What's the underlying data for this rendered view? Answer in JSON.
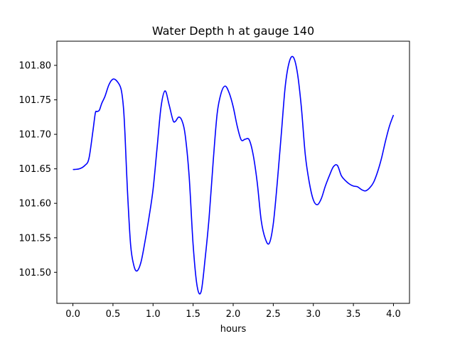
{
  "chart_data": {
    "type": "line",
    "title": "Water Depth h at gauge 140",
    "xlabel": "hours",
    "ylabel": "",
    "xlim": [
      -0.2,
      4.2
    ],
    "ylim": [
      101.455,
      101.835
    ],
    "x_ticks": [
      0.0,
      0.5,
      1.0,
      1.5,
      2.0,
      2.5,
      3.0,
      3.5,
      4.0
    ],
    "x_tick_labels": [
      "0.0",
      "0.5",
      "1.0",
      "1.5",
      "2.0",
      "2.5",
      "3.0",
      "3.5",
      "4.0"
    ],
    "y_ticks": [
      101.5,
      101.55,
      101.6,
      101.65,
      101.7,
      101.75,
      101.8
    ],
    "y_tick_labels": [
      "101.50",
      "101.55",
      "101.60",
      "101.65",
      "101.70",
      "101.75",
      "101.80"
    ],
    "grid": false,
    "series": [
      {
        "color": "#0000ff",
        "x": [
          0.0,
          0.08,
          0.15,
          0.2,
          0.25,
          0.28,
          0.3,
          0.33,
          0.36,
          0.4,
          0.45,
          0.5,
          0.55,
          0.6,
          0.63,
          0.65,
          0.68,
          0.72,
          0.76,
          0.8,
          0.85,
          0.9,
          0.95,
          1.0,
          1.05,
          1.1,
          1.15,
          1.2,
          1.25,
          1.28,
          1.32,
          1.36,
          1.4,
          1.45,
          1.5,
          1.55,
          1.6,
          1.65,
          1.7,
          1.75,
          1.8,
          1.85,
          1.9,
          1.95,
          2.0,
          2.05,
          2.1,
          2.15,
          2.2,
          2.25,
          2.3,
          2.35,
          2.4,
          2.45,
          2.5,
          2.55,
          2.6,
          2.65,
          2.7,
          2.75,
          2.8,
          2.85,
          2.9,
          2.95,
          3.0,
          3.05,
          3.1,
          3.15,
          3.2,
          3.25,
          3.3,
          3.35,
          3.4,
          3.45,
          3.5,
          3.55,
          3.6,
          3.65,
          3.7,
          3.75,
          3.8,
          3.85,
          3.9,
          3.95,
          4.0
        ],
        "y": [
          101.649,
          101.65,
          101.655,
          101.665,
          101.705,
          101.731,
          101.733,
          101.735,
          101.745,
          101.755,
          101.772,
          101.78,
          101.777,
          101.766,
          101.74,
          101.7,
          101.62,
          101.54,
          101.51,
          101.502,
          101.515,
          101.545,
          101.58,
          101.62,
          101.68,
          101.74,
          101.763,
          101.743,
          101.72,
          101.719,
          101.725,
          101.72,
          101.7,
          101.64,
          101.54,
          101.48,
          101.472,
          101.52,
          101.58,
          101.66,
          101.73,
          101.76,
          101.77,
          101.76,
          101.74,
          101.712,
          101.692,
          101.693,
          101.692,
          101.67,
          101.63,
          101.575,
          101.549,
          101.542,
          101.57,
          101.63,
          101.7,
          101.77,
          101.805,
          101.812,
          101.79,
          101.74,
          101.67,
          101.63,
          101.605,
          101.598,
          101.607,
          101.625,
          101.64,
          101.653,
          101.655,
          101.64,
          101.633,
          101.628,
          101.625,
          101.624,
          101.62,
          101.618,
          101.622,
          101.63,
          101.645,
          101.665,
          101.69,
          101.712,
          101.728
        ]
      }
    ]
  }
}
